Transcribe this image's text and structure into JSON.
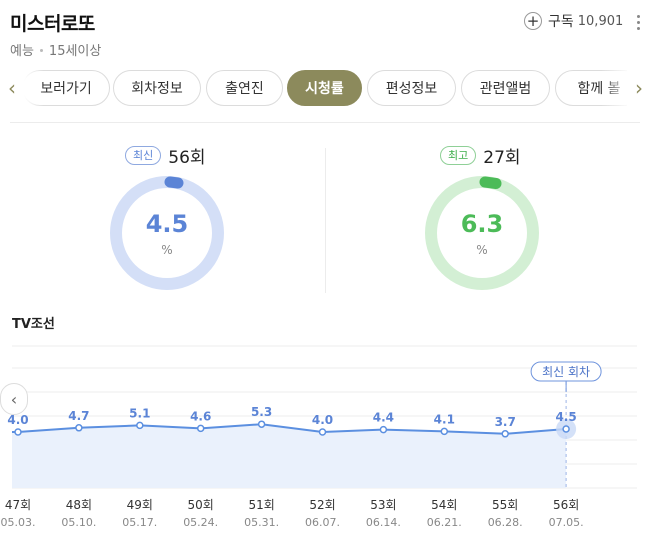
{
  "header": {
    "title": "미스터로또",
    "genre": "예능",
    "rating": "15세이상",
    "subscribe_label": "구독",
    "subscribe_count": "10,901"
  },
  "tabs": [
    {
      "label": "보러가기",
      "active": false
    },
    {
      "label": "회차정보",
      "active": false
    },
    {
      "label": "출연진",
      "active": false
    },
    {
      "label": "시청률",
      "active": true
    },
    {
      "label": "편성정보",
      "active": false
    },
    {
      "label": "관련앨범",
      "active": false
    },
    {
      "label": "함께 볼",
      "active": false
    }
  ],
  "latest": {
    "badge": "최신",
    "episode": "56회",
    "value": "4.5",
    "unit": "%",
    "color": "#5b84d6",
    "track_color": "#d4dff7"
  },
  "best": {
    "badge": "최고",
    "episode": "27회",
    "value": "6.3",
    "unit": "%",
    "color": "#4cbb58",
    "track_color": "#d3efd4"
  },
  "channel": "TV조선",
  "chart_data": {
    "type": "line",
    "series": [
      {
        "values": [
          4.0,
          4.7,
          5.1,
          4.6,
          5.3,
          4.0,
          4.4,
          4.1,
          3.7,
          4.5
        ]
      }
    ],
    "value_labels": [
      "4.0",
      "4.7",
      "5.1",
      "4.6",
      "5.3",
      "4.0",
      "4.4",
      "4.1",
      "3.7",
      "4.5"
    ],
    "episodes": [
      "47회",
      "48회",
      "49회",
      "50회",
      "51회",
      "52회",
      "53회",
      "54회",
      "55회",
      "56회"
    ],
    "dates": [
      "05.03.",
      "05.10.",
      "05.17.",
      "05.24.",
      "05.31.",
      "06.07.",
      "06.14.",
      "06.21.",
      "06.28.",
      "07.05."
    ],
    "callout": "최신 회차",
    "line_color": "#5b8fe0",
    "fill_color": "#eaf1fc",
    "grid": true
  }
}
